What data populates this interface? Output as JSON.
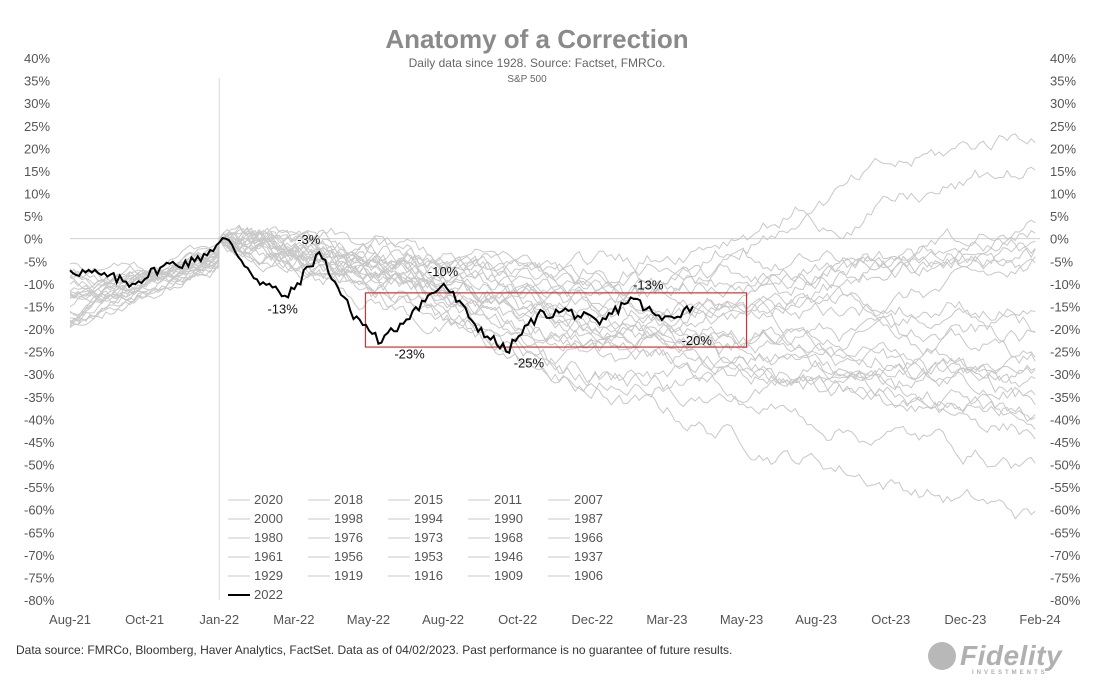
{
  "chart_data": {
    "type": "line",
    "title": "Anatomy of a Correction",
    "subtitle": "Daily data since 1928.  Source: Factset, FMRCo.",
    "series_label": "S&P 500",
    "x_ticks": [
      "Aug-21",
      "Oct-21",
      "Jan-22",
      "Mar-22",
      "May-22",
      "Aug-22",
      "Oct-22",
      "Dec-22",
      "Mar-23",
      "May-23",
      "Aug-23",
      "Oct-23",
      "Dec-23",
      "Feb-24"
    ],
    "y_ticks": [
      "40%",
      "35%",
      "30%",
      "25%",
      "20%",
      "15%",
      "10%",
      "5%",
      "0%",
      "-5%",
      "-10%",
      "-15%",
      "-20%",
      "-25%",
      "-30%",
      "-35%",
      "-40%",
      "-45%",
      "-50%",
      "-55%",
      "-60%",
      "-65%",
      "-70%",
      "-75%",
      "-80%"
    ],
    "ylim": [
      -80,
      40
    ],
    "grid": false,
    "legend_placement": "bottom-left",
    "legend": [
      "2020",
      "2018",
      "2015",
      "2011",
      "2007",
      "2000",
      "1998",
      "1994",
      "1990",
      "1987",
      "1980",
      "1976",
      "1973",
      "1968",
      "1966",
      "1961",
      "1956",
      "1953",
      "1946",
      "1937",
      "1929",
      "1919",
      "1916",
      "1909",
      "1906",
      "2022"
    ],
    "highlight_series": {
      "name": "2022",
      "x": [
        "Aug-21",
        "Sep-21",
        "Oct-21",
        "Nov-21",
        "Dec-21",
        "Jan-22",
        "Feb-22",
        "Mar-22",
        "Apr-22",
        "May-22",
        "Jun-22",
        "Jul-22",
        "Aug-22",
        "Sep-22",
        "Oct-22",
        "Nov-22",
        "Dec-22",
        "Jan-23",
        "Feb-23",
        "Mar-23",
        "Apr-23"
      ],
      "values": [
        -7,
        -8,
        -10,
        -6,
        -5,
        0,
        -9,
        -13,
        -3,
        -16,
        -23,
        -16,
        -10,
        -19,
        -25,
        -17,
        -16,
        -19,
        -13,
        -18,
        -15
      ]
    },
    "annotations": [
      {
        "label": "-3%",
        "value": -3
      },
      {
        "label": "-13%",
        "value": -13
      },
      {
        "label": "-10%",
        "value": -10
      },
      {
        "label": "-23%",
        "value": -23
      },
      {
        "label": "-25%",
        "value": -25
      },
      {
        "label": "-13%",
        "value": -13
      },
      {
        "label": "-20%",
        "value": -20
      }
    ],
    "highlight_box_range": [
      -24,
      -12
    ],
    "colors": {
      "highlight": "#000000",
      "history": "#c8c8c8",
      "box": "#cc3333"
    }
  },
  "footer": "Data source: FMRCo, Bloomberg, Haver Analytics, FactSet. Data as of 04/02/2023. Past performance is no guarantee of future results.",
  "brand": "Fidelity",
  "brand_sub": "INVESTMENTS"
}
